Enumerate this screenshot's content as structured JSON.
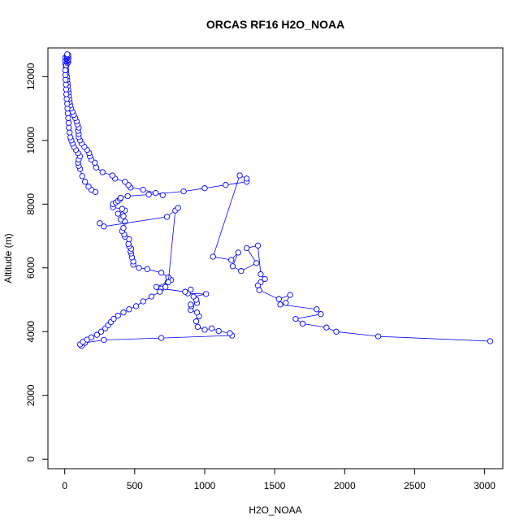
{
  "chart_data": {
    "type": "line",
    "title": "ORCAS RF16 H2O_NOAA",
    "xlabel": "H2O_NOAA",
    "ylabel": "Altitude (m)",
    "xlim": [
      -120,
      3130
    ],
    "ylim": [
      -300,
      12900
    ],
    "x_ticks": [
      0,
      500,
      1000,
      1500,
      2000,
      2500,
      3000
    ],
    "y_ticks": [
      0,
      2000,
      4000,
      6000,
      8000,
      10000,
      12000
    ],
    "grid": false,
    "series_color": "#0000ff",
    "series": [
      {
        "name": "H2O_NOAA",
        "style": "line+open-circle",
        "x": [
          120,
          145,
          280,
          690,
          1195,
          1180,
          1100,
          1050,
          1000,
          950,
          940,
          960,
          945,
          900,
          905,
          900,
          945,
          940,
          920,
          1010,
          880,
          900,
          860,
          690,
          655,
          735,
          760,
          740,
          690,
          590,
          530,
          490,
          490,
          480,
          475,
          470,
          475,
          460,
          455,
          460,
          430,
          425,
          410,
          420,
          430,
          400,
          420,
          380,
          430,
          410,
          345,
          345,
          365,
          380,
          395,
          400,
          450,
          600,
          850,
          1000,
          1150,
          1300,
          1300,
          1250,
          1060,
          1190,
          1240,
          1200,
          1260,
          1370,
          1300,
          1380,
          1400,
          1430,
          1400,
          1380,
          1390,
          1530,
          1610,
          1580,
          1540,
          1800,
          1830,
          1650,
          1700,
          1870,
          1940,
          2240,
          3040
        ],
        "y": [
          3550,
          3650,
          3740,
          3800,
          3880,
          3950,
          4020,
          4100,
          4060,
          4150,
          4320,
          4480,
          4600,
          4680,
          4800,
          4850,
          4900,
          5000,
          5100,
          5180,
          5200,
          5320,
          5250,
          5350,
          5400,
          5550,
          5620,
          5700,
          5850,
          5960,
          6000,
          6100,
          6200,
          6330,
          6450,
          6520,
          6600,
          6680,
          6750,
          6900,
          6980,
          7050,
          7150,
          7250,
          7450,
          7520,
          7620,
          7700,
          7800,
          7850,
          7900,
          8000,
          8050,
          8100,
          8160,
          8200,
          8250,
          8300,
          8400,
          8500,
          8600,
          8700,
          8800,
          8900,
          6350,
          6250,
          6480,
          6050,
          5900,
          6150,
          6620,
          6700,
          5800,
          5650,
          5550,
          5450,
          5300,
          5020,
          5150,
          4900,
          4850,
          4700,
          4550,
          4400,
          4250,
          4130,
          4000,
          3850,
          3700
        ]
      },
      {
        "name": "H2O_NOAA",
        "style": "line+open-circle",
        "x": [
          110,
          130,
          160,
          190,
          230,
          260,
          290,
          310,
          330,
          350,
          380,
          420,
          460,
          510,
          560,
          620,
          680,
          720,
          740,
          790,
          810,
          730,
          280,
          250
        ],
        "y": [
          3600,
          3680,
          3750,
          3820,
          3900,
          4000,
          4100,
          4200,
          4300,
          4400,
          4500,
          4600,
          4700,
          4800,
          4950,
          5100,
          5250,
          5400,
          5550,
          7800,
          7880,
          7600,
          7300,
          7400
        ]
      },
      {
        "name": "H2O_NOAA",
        "style": "line+open-circle",
        "x": [
          700,
          650,
          560,
          470,
          455,
          430,
          360,
          340,
          270,
          225,
          215,
          190,
          180,
          175,
          160,
          140,
          120,
          110,
          100,
          100,
          95,
          100,
          90,
          85,
          75,
          65,
          55,
          45,
          40,
          35,
          32,
          30,
          28,
          25,
          22,
          20,
          18,
          15,
          12,
          10,
          8,
          5,
          5,
          5
        ],
        "y": [
          8280,
          8350,
          8450,
          8520,
          8600,
          8700,
          8800,
          8900,
          9000,
          9150,
          9300,
          9400,
          9500,
          9600,
          9700,
          9800,
          9900,
          10000,
          10100,
          10200,
          10300,
          10400,
          10500,
          10600,
          10700,
          10800,
          10900,
          11000,
          11100,
          11200,
          11300,
          11400,
          11500,
          11600,
          11700,
          11800,
          11900,
          12000,
          12100,
          12200,
          12300,
          12400,
          12500,
          12600
        ]
      },
      {
        "name": "H2O_NOAA",
        "style": "line+open-circle",
        "x": [
          220,
          190,
          170,
          145,
          125,
          110,
          100,
          95,
          100,
          110,
          95,
          80,
          65,
          55,
          48,
          40,
          35,
          30,
          28,
          25,
          22,
          20,
          18,
          14,
          12,
          10,
          8,
          6,
          5,
          4,
          10,
          20,
          25,
          20,
          15,
          20,
          25,
          15,
          20,
          25,
          20,
          15,
          20,
          25,
          18
        ],
        "y": [
          8380,
          8450,
          8550,
          8700,
          8880,
          9100,
          9200,
          9300,
          9400,
          9500,
          9600,
          9700,
          9800,
          9900,
          10000,
          10100,
          10250,
          10400,
          10550,
          10700,
          10850,
          11000,
          11150,
          11300,
          11450,
          11600,
          11750,
          11900,
          12050,
          12200,
          12350,
          12420,
          12450,
          12480,
          12500,
          12520,
          12540,
          12560,
          12580,
          12600,
          12620,
          12640,
          12660,
          12680,
          12700
        ]
      }
    ]
  }
}
